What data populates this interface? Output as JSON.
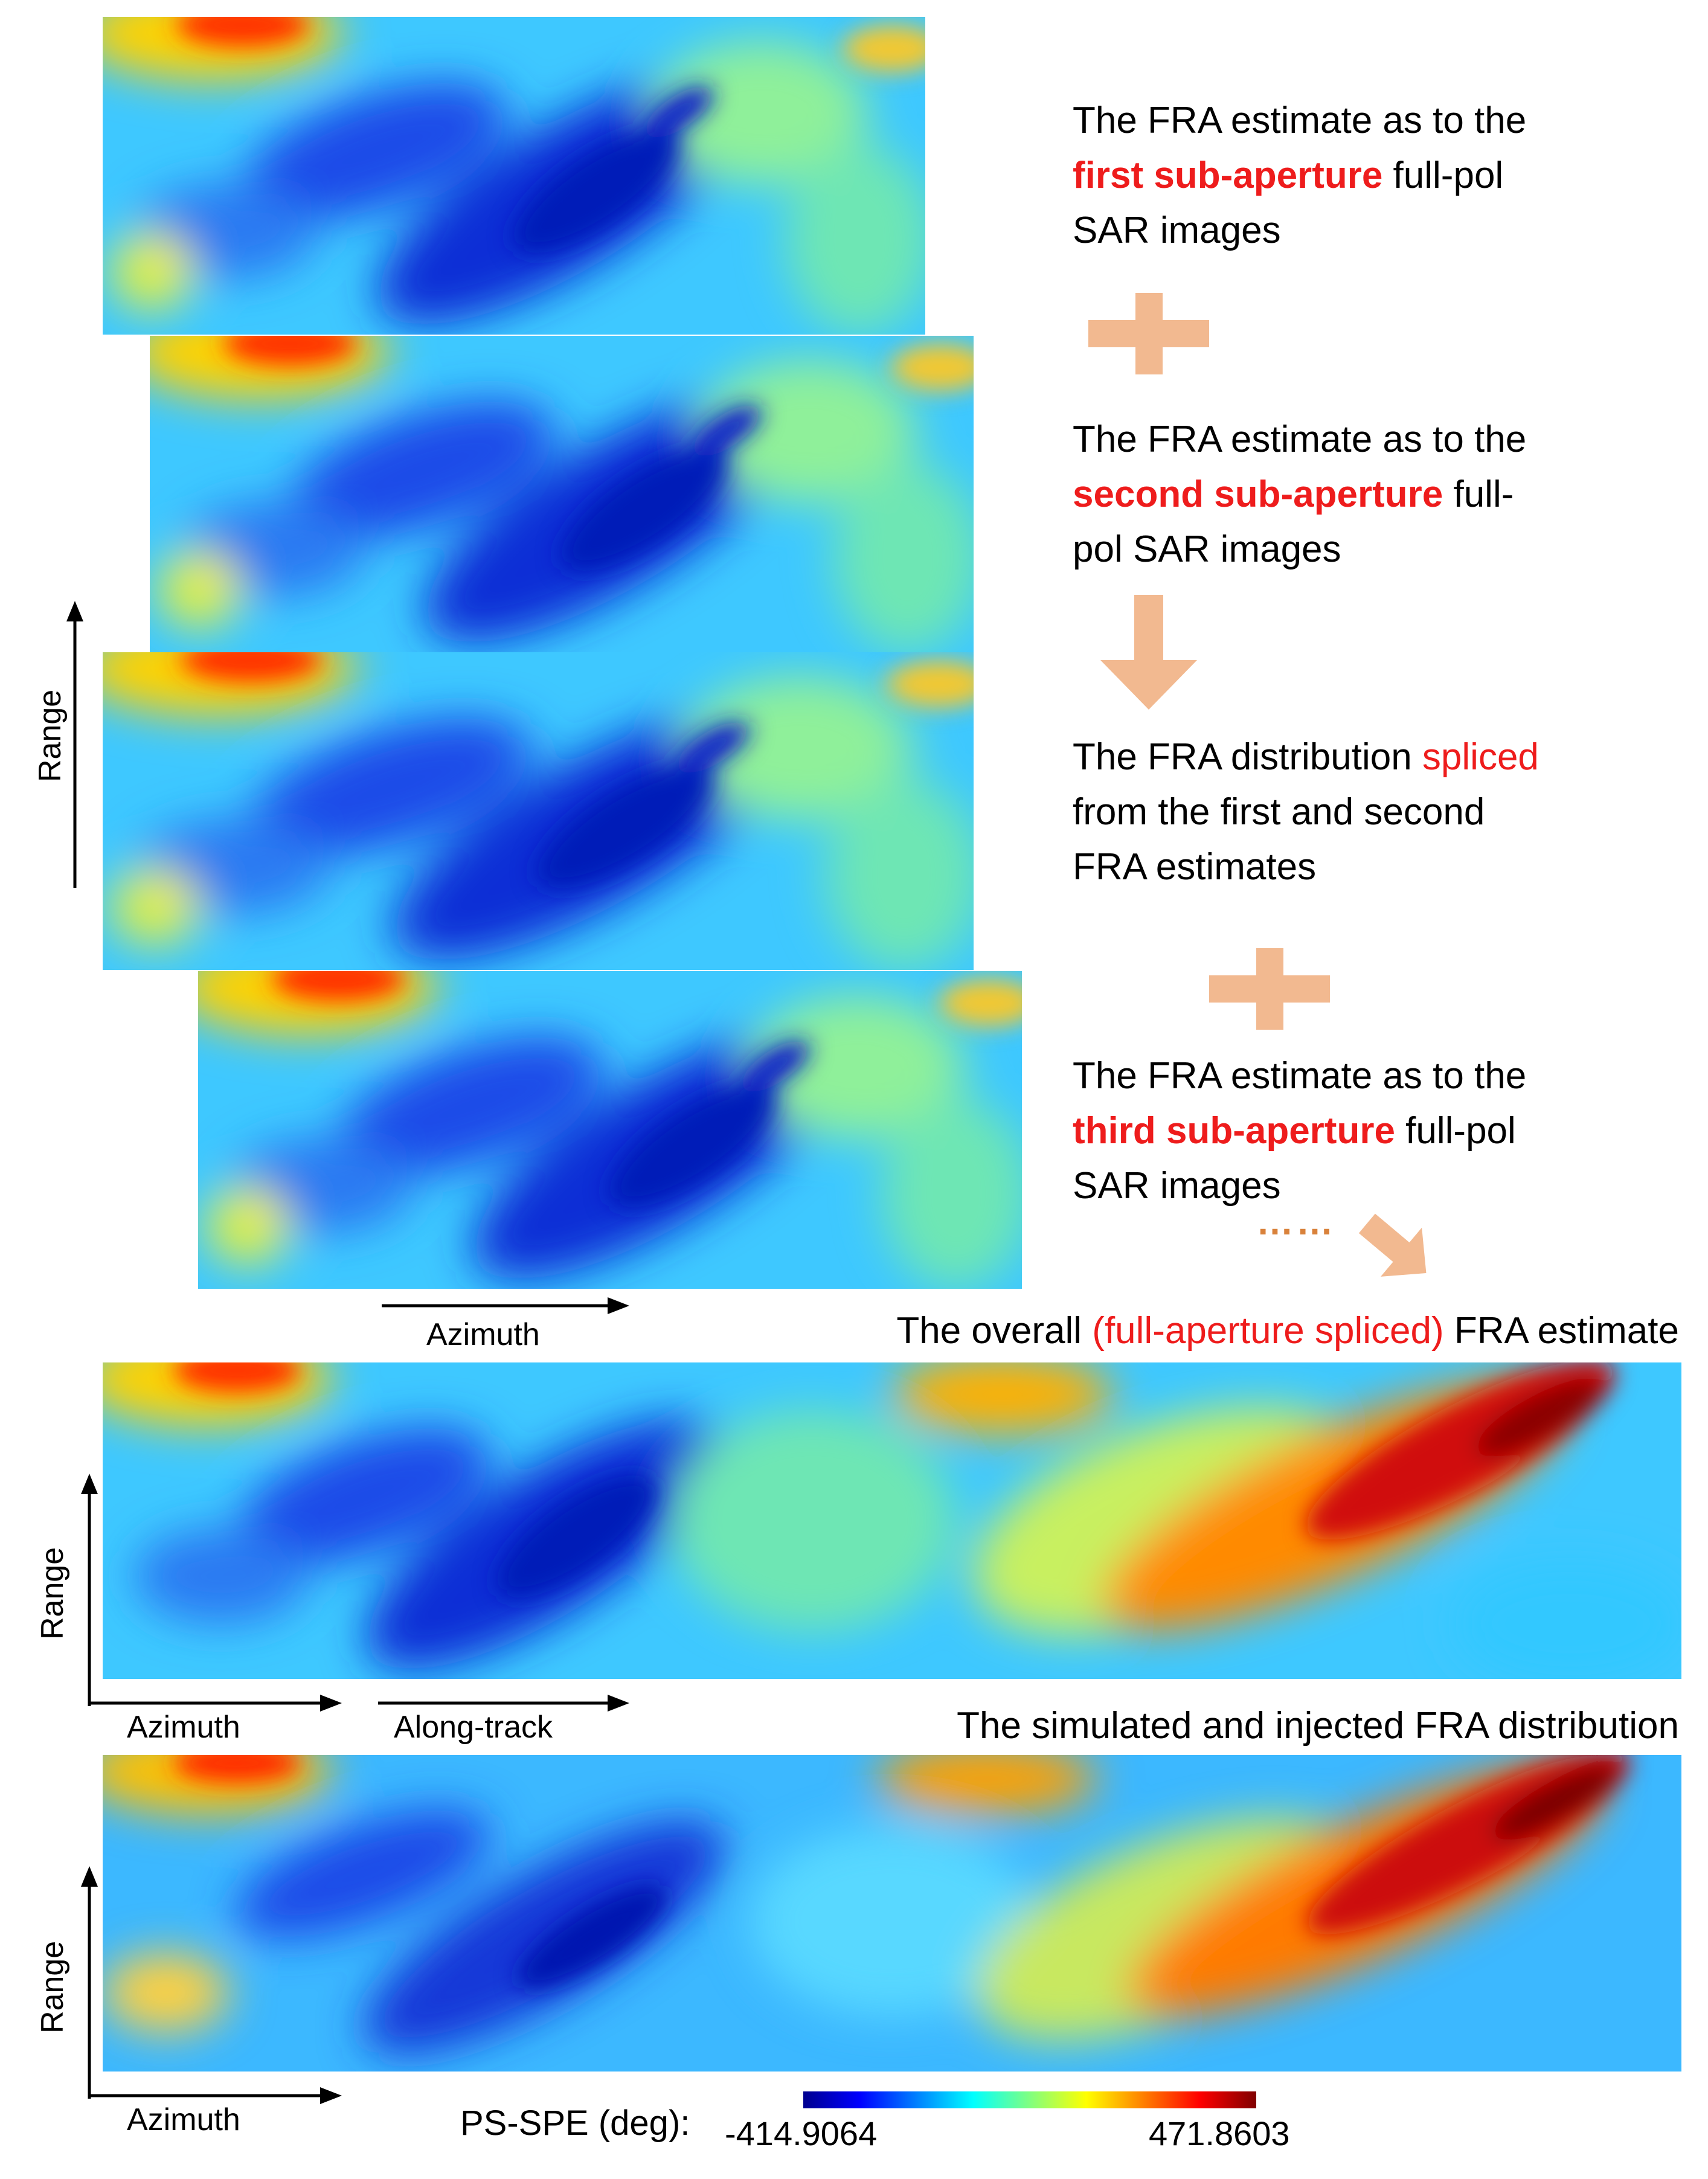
{
  "steps": {
    "step1": {
      "pre": "The FRA estimate as to the",
      "hl": "first sub-aperture",
      "post": " full-pol",
      "line3": "SAR images"
    },
    "step2": {
      "pre": "The FRA estimate as to the",
      "hl": "second sub-aperture",
      "post": " full-",
      "line3": "pol SAR images"
    },
    "step3": {
      "pre": "The FRA distribution ",
      "hl": "spliced",
      "line2": "from the first and second",
      "line3": "FRA estimates"
    },
    "step4": {
      "pre": "The FRA estimate as to the",
      "hl": "third sub-aperture",
      "post": " full-pol",
      "line3": "SAR images"
    },
    "ellipsis": "……"
  },
  "captions": {
    "overall_pre": "The overall ",
    "overall_hl": "(full-aperture spliced)",
    "overall_post": " FRA estimate",
    "simulated": "The simulated and injected FRA distribution"
  },
  "axes": {
    "range": "Range",
    "azimuth": "Azimuth",
    "along_track": "Along-track"
  },
  "colorbar": {
    "label": "PS-SPE (deg):",
    "min": "-414.9064",
    "max": "471.8603",
    "colors": [
      "#00008f",
      "#0000ff",
      "#0080ff",
      "#00ffff",
      "#80ff80",
      "#ffff00",
      "#ff8000",
      "#ff0000",
      "#800000"
    ]
  },
  "colors": {
    "highlight": "#ee1c1c",
    "flow_arrow": "#f2b990"
  }
}
